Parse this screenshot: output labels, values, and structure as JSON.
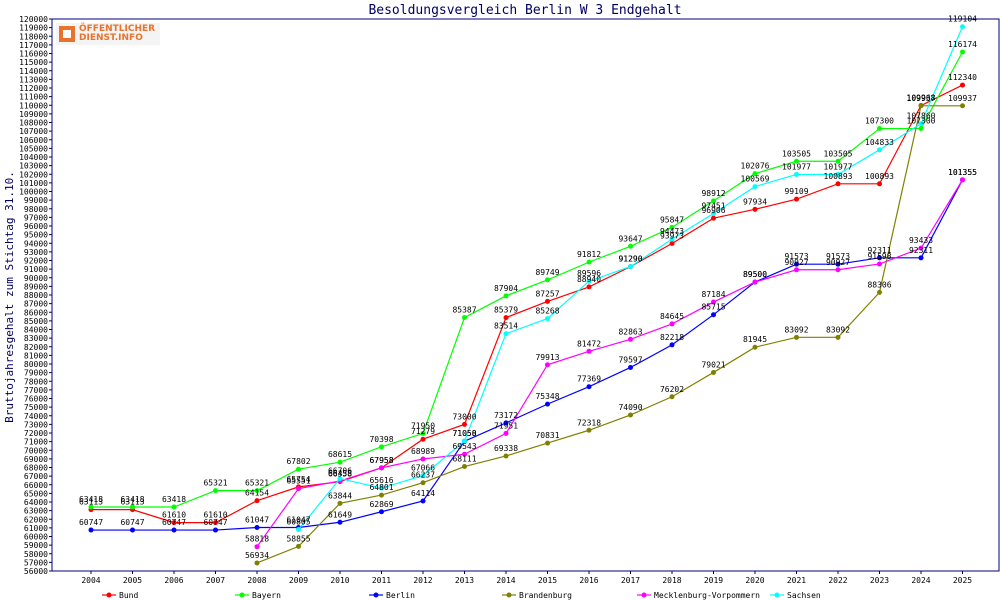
{
  "logo": {
    "line1": "ÖFFENTLICHER",
    "line2": "DIENST.INFO"
  },
  "chart_data": {
    "type": "line",
    "title": "Besoldungsvergleich Berlin W 3 Endgehalt",
    "ylabel": "Bruttojahresgehalt zum Stichtag 31.10.",
    "xlabel": "",
    "ylim": [
      56000,
      120000
    ],
    "ytick_step": 1000,
    "grid": false,
    "legend_position": "bottom",
    "categories": [
      "2004",
      "2005",
      "2006",
      "2007",
      "2008",
      "2009",
      "2010",
      "2011",
      "2012",
      "2013",
      "2014",
      "2015",
      "2016",
      "2017",
      "2018",
      "2019",
      "2020",
      "2021",
      "2022",
      "2023",
      "2024",
      "2025"
    ],
    "series": [
      {
        "name": "Bund",
        "color": "#ff0000",
        "values": [
          63113,
          63113,
          61610,
          61610,
          64154,
          65754,
          66358,
          67958,
          71279,
          73000,
          85379,
          87257,
          88940,
          91290,
          93973,
          96906,
          97934,
          99109,
          100893,
          100893,
          109968,
          112340
        ]
      },
      {
        "name": "Bayern",
        "color": "#00ff00",
        "values": [
          63418,
          63418,
          63418,
          65321,
          65321,
          67802,
          68615,
          70398,
          71950,
          85387,
          87904,
          89749,
          91812,
          93647,
          95847,
          98912,
          102076,
          103505,
          103505,
          107300,
          107300,
          116174
        ]
      },
      {
        "name": "Berlin",
        "color": "#0000ff",
        "values": [
          60747,
          60747,
          60747,
          60747,
          61047,
          61047,
          61649,
          62869,
          64114,
          71050,
          73172,
          75348,
          77369,
          79597,
          82218,
          85715,
          89500,
          91573,
          91573,
          92311,
          92311,
          101355
        ]
      },
      {
        "name": "Brandenburg",
        "color": "#808000",
        "values": [
          null,
          null,
          null,
          null,
          56934,
          58855,
          63844,
          64801,
          66237,
          68111,
          69338,
          70831,
          72318,
          74090,
          76202,
          79021,
          81945,
          83092,
          83092,
          88306,
          109937,
          109937
        ]
      },
      {
        "name": "Mecklenburg-Vorpommern",
        "color": "#ff00ff",
        "values": [
          null,
          null,
          null,
          null,
          58818,
          65551,
          66438,
          67958,
          68989,
          69543,
          71951,
          79913,
          81472,
          82863,
          84645,
          87184,
          89500,
          90927,
          90927,
          91598,
          93433,
          101355
        ]
      },
      {
        "name": "Sachsen",
        "color": "#00ffff",
        "values": [
          null,
          null,
          null,
          null,
          null,
          60805,
          66706,
          65616,
          67066,
          71058,
          83514,
          85268,
          89596,
          91290,
          94473,
          97451,
          100569,
          101977,
          101977,
          104833,
          107860,
          119104
        ]
      }
    ]
  }
}
